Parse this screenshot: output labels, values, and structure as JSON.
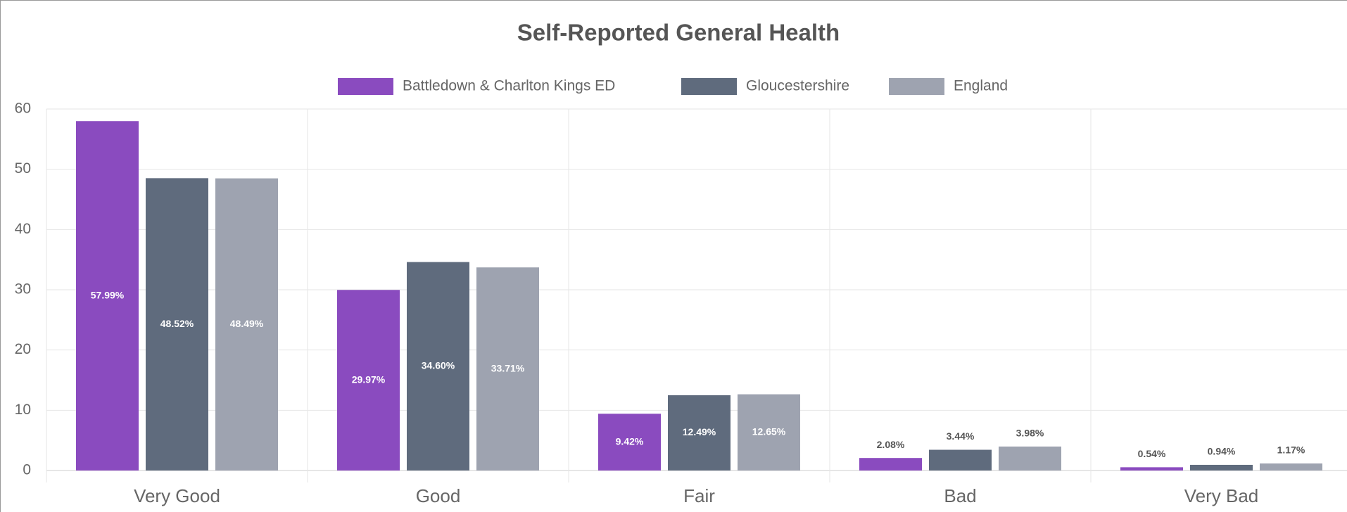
{
  "chart_data": {
    "type": "bar",
    "title": "Self-Reported General Health",
    "categories": [
      "Very Good",
      "Good",
      "Fair",
      "Bad",
      "Very Bad"
    ],
    "series": [
      {
        "name": "Battledown & Charlton Kings ED",
        "color": "#8a4bbf",
        "values": [
          57.99,
          29.97,
          9.42,
          2.08,
          0.54
        ],
        "value_labels": [
          "57.99%",
          "29.97%",
          "9.42%",
          "2.08%",
          "0.54%"
        ]
      },
      {
        "name": "Gloucestershire",
        "color": "#5f6b7d",
        "values": [
          48.52,
          34.6,
          12.49,
          3.44,
          0.94
        ],
        "value_labels": [
          "48.52%",
          "34.60%",
          "12.49%",
          "3.44%",
          "0.94%"
        ]
      },
      {
        "name": "England",
        "color": "#9ea3b0",
        "values": [
          48.49,
          33.71,
          12.65,
          3.98,
          1.17
        ],
        "value_labels": [
          "48.49%",
          "33.71%",
          "12.65%",
          "3.98%",
          "1.17%"
        ]
      }
    ],
    "ylim": [
      0,
      60
    ],
    "yticks": [
      0,
      10,
      20,
      30,
      40,
      50,
      60
    ],
    "grid": true,
    "legend": "top"
  }
}
